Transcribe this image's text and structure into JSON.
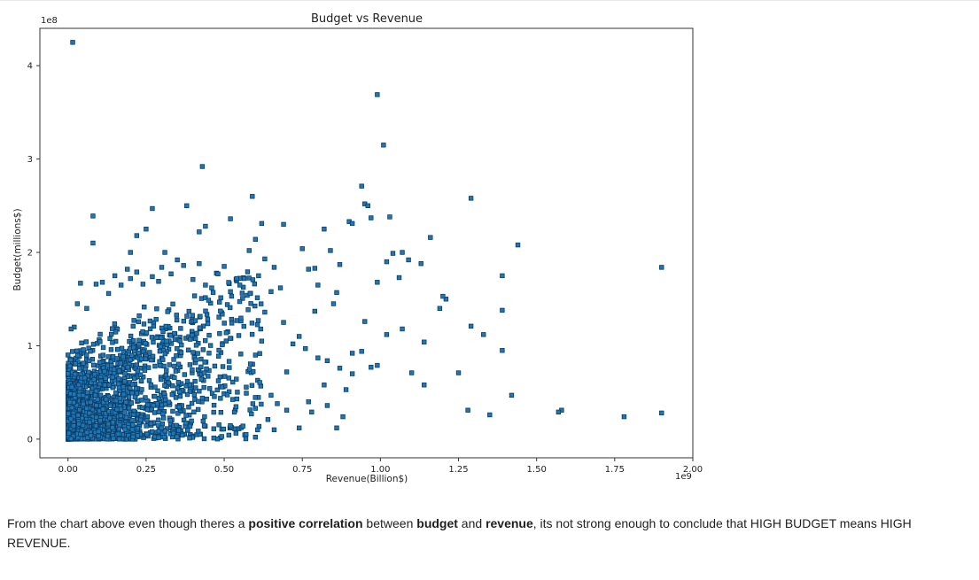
{
  "chart_data": {
    "type": "scatter",
    "title": "Budget vs Revenue",
    "xlabel": "Revenue(Billion$)",
    "ylabel": "Budget(millions$)",
    "x_offset_label": "1e9",
    "y_offset_label": "1e8",
    "xlim": [
      -90000000.0,
      2000000000.0
    ],
    "ylim": [
      -20000000.0,
      440000000.0
    ],
    "x_ticks": [
      0,
      250000000.0,
      500000000.0,
      750000000.0,
      1000000000.0,
      1250000000.0,
      1500000000.0,
      1750000000.0,
      2000000000.0
    ],
    "x_tick_labels": [
      "0.00",
      "0.25",
      "0.50",
      "0.75",
      "1.00",
      "1.25",
      "1.50",
      "1.75",
      "2.00"
    ],
    "y_ticks": [
      0,
      100000000.0,
      200000000.0,
      300000000.0,
      400000000.0
    ],
    "y_tick_labels": [
      "0",
      "1",
      "2",
      "3",
      "4"
    ],
    "grid": false,
    "marker_color": "#1f77b4",
    "marker_edge": "#0b3c66",
    "points": [
      [
        15000000.0,
        425000000.0
      ],
      [
        990000000.0,
        369000000.0
      ],
      [
        1010000000.0,
        315000000.0
      ],
      [
        430000000.0,
        292000000.0
      ],
      [
        940000000.0,
        271000000.0
      ],
      [
        1290000000.0,
        258000000.0
      ],
      [
        590000000.0,
        260000000.0
      ],
      [
        380000000.0,
        250000000.0
      ],
      [
        270000000.0,
        247000000.0
      ],
      [
        950000000.0,
        252000000.0
      ],
      [
        960000000.0,
        250000000.0
      ],
      [
        80000000.0,
        239000000.0
      ],
      [
        520000000.0,
        236000000.0
      ],
      [
        1030000000.0,
        238000000.0
      ],
      [
        970000000.0,
        237000000.0
      ],
      [
        620000000.0,
        231000000.0
      ],
      [
        690000000.0,
        230000000.0
      ],
      [
        900000000.0,
        233000000.0
      ],
      [
        910000000.0,
        231000000.0
      ],
      [
        440000000.0,
        228000000.0
      ],
      [
        250000000.0,
        225000000.0
      ],
      [
        820000000.0,
        225000000.0
      ],
      [
        420000000.0,
        222000000.0
      ],
      [
        220000000.0,
        218000000.0
      ],
      [
        1160000000.0,
        216000000.0
      ],
      [
        600000000.0,
        214000000.0
      ],
      [
        80000000.0,
        210000000.0
      ],
      [
        1440000000.0,
        208000000.0
      ],
      [
        1900000000.0,
        184000000.0
      ],
      [
        750000000.0,
        204000000.0
      ],
      [
        840000000.0,
        202000000.0
      ],
      [
        200000000.0,
        200000000.0
      ],
      [
        1040000000.0,
        199000000.0
      ],
      [
        1070000000.0,
        200000000.0
      ],
      [
        310000000.0,
        200000000.0
      ],
      [
        580000000.0,
        202000000.0
      ],
      [
        1020000000.0,
        190000000.0
      ],
      [
        1090000000.0,
        192000000.0
      ],
      [
        1130000000.0,
        188000000.0
      ],
      [
        1390000000.0,
        175000000.0
      ],
      [
        1060000000.0,
        173000000.0
      ],
      [
        990000000.0,
        168000000.0
      ],
      [
        1210000000.0,
        150000000.0
      ],
      [
        1200000000.0,
        153000000.0
      ],
      [
        1190000000.0,
        140000000.0
      ],
      [
        1390000000.0,
        138000000.0
      ],
      [
        950000000.0,
        126000000.0
      ],
      [
        1290000000.0,
        121000000.0
      ],
      [
        1330000000.0,
        112000000.0
      ],
      [
        1070000000.0,
        118000000.0
      ],
      [
        1140000000.0,
        104000000.0
      ],
      [
        1390000000.0,
        95000000.0
      ],
      [
        1020000000.0,
        112000000.0
      ],
      [
        1250000000.0,
        71000000.0
      ],
      [
        1100000000.0,
        71000000.0
      ],
      [
        1140000000.0,
        58000000.0
      ],
      [
        1420000000.0,
        47000000.0
      ],
      [
        1580000000.0,
        31000000.0
      ],
      [
        1570000000.0,
        29000000.0
      ],
      [
        1780000000.0,
        24000000.0
      ],
      [
        1900000000.0,
        28000000.0
      ],
      [
        1350000000.0,
        26000000.0
      ],
      [
        1280000000.0,
        31000000.0
      ],
      [
        870000000.0,
        76000000.0
      ],
      [
        910000000.0,
        92000000.0
      ],
      [
        990000000.0,
        79000000.0
      ],
      [
        970000000.0,
        77000000.0
      ],
      [
        890000000.0,
        53000000.0
      ],
      [
        880000000.0,
        24000000.0
      ],
      [
        830000000.0,
        36000000.0
      ],
      [
        860000000.0,
        12000000.0
      ],
      [
        780000000.0,
        29000000.0
      ],
      [
        770000000.0,
        40000000.0
      ],
      [
        740000000.0,
        12000000.0
      ],
      [
        910000000.0,
        70000000.0
      ],
      [
        940000000.0,
        94000000.0
      ],
      [
        850000000.0,
        145000000.0
      ],
      [
        860000000.0,
        157000000.0
      ],
      [
        800000000.0,
        165000000.0
      ],
      [
        870000000.0,
        187000000.0
      ],
      [
        790000000.0,
        183000000.0
      ],
      [
        770000000.0,
        182000000.0
      ],
      [
        790000000.0,
        137000000.0
      ],
      [
        690000000.0,
        125000000.0
      ],
      [
        720000000.0,
        102000000.0
      ],
      [
        740000000.0,
        110000000.0
      ],
      [
        760000000.0,
        97000000.0
      ],
      [
        800000000.0,
        87000000.0
      ],
      [
        830000000.0,
        84000000.0
      ],
      [
        820000000.0,
        58000000.0
      ],
      [
        700000000.0,
        72000000.0
      ],
      [
        650000000.0,
        47000000.0
      ],
      [
        670000000.0,
        38000000.0
      ],
      [
        700000000.0,
        31000000.0
      ],
      [
        640000000.0,
        21000000.0
      ],
      [
        660000000.0,
        10000000.0
      ],
      [
        570000000.0,
        5000000.0
      ],
      [
        560000000.0,
        14000000.0
      ],
      [
        600000000.0,
        33000000.0
      ],
      [
        600000000.0,
        90000000.0
      ],
      [
        620000000.0,
        105000000.0
      ],
      [
        630000000.0,
        136000000.0
      ],
      [
        650000000.0,
        158000000.0
      ],
      [
        680000000.0,
        162000000.0
      ],
      [
        660000000.0,
        184000000.0
      ],
      [
        630000000.0,
        193000000.0
      ],
      [
        610000000.0,
        175000000.0
      ],
      [
        550000000.0,
        165000000.0
      ],
      [
        540000000.0,
        172000000.0
      ],
      [
        520000000.0,
        158000000.0
      ],
      [
        500000000.0,
        185000000.0
      ],
      [
        480000000.0,
        177000000.0
      ],
      [
        460000000.0,
        162000000.0
      ],
      [
        440000000.0,
        165000000.0
      ],
      [
        420000000.0,
        188000000.0
      ],
      [
        400000000.0,
        171000000.0
      ],
      [
        370000000.0,
        186000000.0
      ],
      [
        350000000.0,
        192000000.0
      ],
      [
        330000000.0,
        177000000.0
      ],
      [
        300000000.0,
        184000000.0
      ],
      [
        290000000.0,
        169000000.0
      ],
      [
        270000000.0,
        174000000.0
      ],
      [
        240000000.0,
        166000000.0
      ],
      [
        220000000.0,
        179000000.0
      ],
      [
        200000000.0,
        172000000.0
      ],
      [
        190000000.0,
        182000000.0
      ],
      [
        170000000.0,
        165000000.0
      ],
      [
        150000000.0,
        175000000.0
      ],
      [
        130000000.0,
        156000000.0
      ],
      [
        110000000.0,
        168000000.0
      ],
      [
        90000000.0,
        166000000.0
      ],
      [
        40000000.0,
        167000000.0
      ],
      [
        60000000.0,
        140000000.0
      ],
      [
        30000000.0,
        145000000.0
      ],
      [
        20000000.0,
        120000000.0
      ],
      [
        10000000.0,
        118000000.0
      ]
    ]
  },
  "note": {
    "part1": "From the chart above even though theres a ",
    "bold1": "positive correlation",
    "part2": " between ",
    "bold2": "budget",
    "part3": " and ",
    "bold3": "revenue",
    "part4": ", its not strong enough to conclude that HIGH BUDGET means HIGH REVENUE."
  }
}
